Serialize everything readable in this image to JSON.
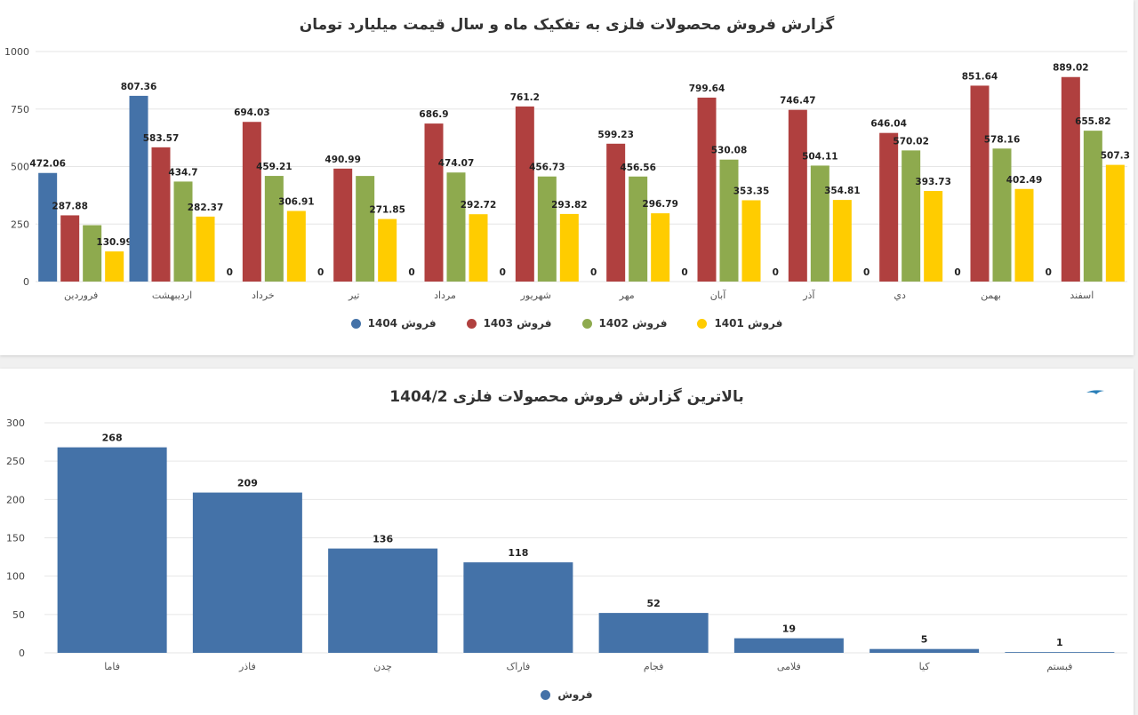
{
  "chart_data": [
    {
      "type": "bar",
      "title": "گزارش فروش محصولات فلزی به تفکیک ماه و سال قیمت میلیارد تومان",
      "categories": [
        "فروردین",
        "اردیبهشت",
        "خرداد",
        "تیر",
        "مرداد",
        "شهریور",
        "مهر",
        "آبان",
        "آذر",
        "دي",
        "بهمن",
        "اسفند"
      ],
      "series": [
        {
          "name": "فروش 1404",
          "color": "#4472a8",
          "values": [
            472.06,
            807.36,
            0,
            0,
            0,
            0,
            0,
            0,
            0,
            0,
            0,
            0
          ]
        },
        {
          "name": "فروش 1403",
          "color": "#b0403f",
          "values": [
            287.88,
            583.57,
            694.03,
            490.99,
            686.9,
            761.2,
            599.23,
            799.64,
            746.47,
            646.04,
            851.64,
            889.02
          ]
        },
        {
          "name": "فروش 1402",
          "color": "#8eaa4e",
          "values": [
            245,
            434.7,
            459.21,
            459,
            474.07,
            456.73,
            456.56,
            530.08,
            504.11,
            570.02,
            578.16,
            655.82
          ]
        },
        {
          "name": "فروش 1401",
          "color": "#ffcc00",
          "values": [
            130.99,
            282.37,
            306.91,
            271.85,
            292.72,
            293.82,
            296.79,
            353.35,
            354.81,
            393.73,
            402.49,
            507.3
          ]
        }
      ],
      "data_labels": [
        [
          "472.06",
          "807.36",
          "0",
          "0",
          "0",
          "0",
          "0",
          "0",
          "0",
          "0",
          "0",
          "0"
        ],
        [
          "287.88",
          "583.57",
          "694.03",
          "490.99",
          "686.9",
          "761.2",
          "599.23",
          "799.64",
          "746.47",
          "646.04",
          "851.64",
          "889.02"
        ],
        [
          "",
          "434.7",
          "459.21",
          "",
          "474.07",
          "456.73",
          "456.56",
          "530.08",
          "504.11",
          "570.02",
          "578.16",
          "655.82"
        ],
        [
          "130.99",
          "282.37",
          "306.91",
          "271.85",
          "292.72",
          "293.82",
          "296.79",
          "353.35",
          "354.81",
          "393.73",
          "402.49",
          "507.3"
        ]
      ],
      "yticks": [
        "0",
        "250",
        "500",
        "750",
        "1000"
      ],
      "ylim": [
        0,
        1000
      ],
      "grid": true,
      "legend": "bottom"
    },
    {
      "type": "bar",
      "title": "بالاترین گزارش فروش محصولات فلزی 1404/2",
      "categories": [
        "فاما",
        "فاذر",
        "چدن",
        "فاراک",
        "فجام",
        "فلامی",
        "کیا",
        "فبستم"
      ],
      "series": [
        {
          "name": "فروش",
          "color": "#4472a8",
          "values": [
            268,
            209,
            136,
            118,
            52,
            19,
            5,
            1
          ]
        }
      ],
      "data_labels": [
        [
          "268",
          "209",
          "136",
          "118",
          "52",
          "19",
          "5",
          "1"
        ]
      ],
      "yticks": [
        "0",
        "50",
        "100",
        "150",
        "200",
        "250",
        "300"
      ],
      "ylim": [
        0,
        300
      ],
      "grid": true,
      "legend": "bottom"
    }
  ]
}
